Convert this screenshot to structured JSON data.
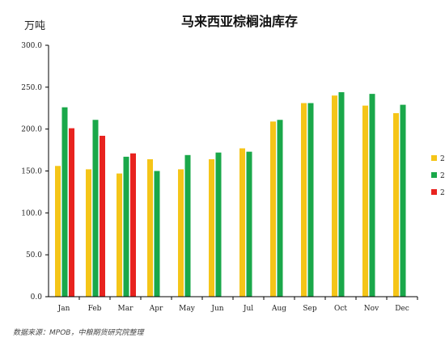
{
  "chart_data": {
    "type": "bar",
    "title": "马来西亚棕榈油库存",
    "unit_label": "万吨",
    "categories": [
      "Jan",
      "Feb",
      "Mar",
      "Apr",
      "May",
      "Jun",
      "Jul",
      "Aug",
      "Sep",
      "Oct",
      "Nov",
      "Dec"
    ],
    "ylim": [
      0,
      300
    ],
    "yticks": [
      "0.0",
      "50.0",
      "100.0",
      "150.0",
      "200.0",
      "250.0",
      "300.0"
    ],
    "series": [
      {
        "name": "2",
        "color": "#F5C518",
        "values": [
          156,
          152,
          147,
          164,
          152,
          164,
          177,
          209,
          231,
          240,
          228,
          219
        ]
      },
      {
        "name": "2",
        "color": "#1AA84A",
        "values": [
          226,
          211,
          167,
          150,
          169,
          172,
          173,
          211,
          231,
          244,
          242,
          229
        ]
      },
      {
        "name": "2",
        "color": "#E8231F",
        "values": [
          201,
          192,
          171,
          null,
          null,
          null,
          null,
          null,
          null,
          null,
          null,
          null
        ]
      }
    ],
    "legend_position": "right",
    "source": "数据来源：MPOB，中粮期货研究院整理"
  }
}
